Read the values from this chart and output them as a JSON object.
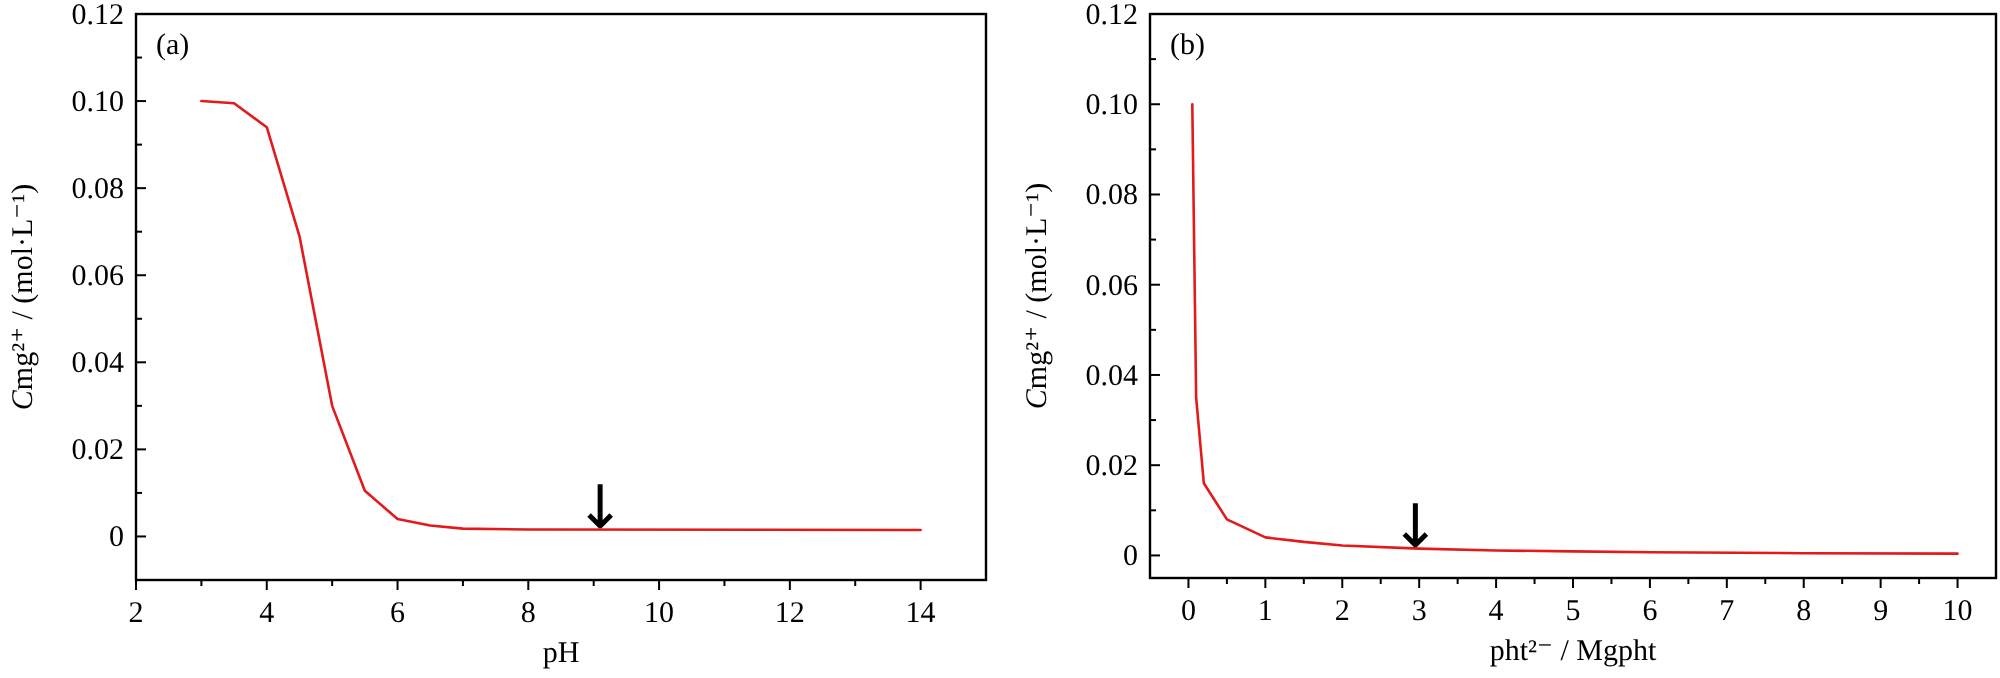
{
  "chart_data": [
    {
      "type": "line",
      "xlabel": "pH",
      "ylabel": "Cmg²⁺ / (mol·L⁻¹)",
      "xlim": [
        2,
        15
      ],
      "xticks": [
        2,
        {
          "value": 3,
          "label": null
        },
        4,
        {
          "value": 5,
          "label": null
        },
        6,
        {
          "value": 7,
          "label": null
        },
        8,
        {
          "value": 9,
          "label": null
        },
        10,
        {
          "value": 11,
          "label": null
        },
        12,
        {
          "value": 13,
          "label": null
        },
        14
      ],
      "ylim": [
        -0.01,
        0.12
      ],
      "yticks": [
        {
          "value": -0.01,
          "label": null
        },
        0,
        {
          "value": 0.01,
          "label": null
        },
        0.02,
        {
          "value": 0.03,
          "label": null
        },
        0.04,
        {
          "value": 0.05,
          "label": null
        },
        0.06,
        {
          "value": 0.07,
          "label": null
        },
        0.08,
        {
          "value": 0.09,
          "label": null
        },
        {
          "value": 0.1,
          "label": "0.10"
        },
        {
          "value": 0.11,
          "label": null
        },
        0.12
      ],
      "grid": false,
      "marker": "none",
      "line_style": "solid",
      "series": [
        {
          "color": "#e31a1c",
          "x": [
            3,
            3.5,
            4,
            4.5,
            5,
            5.5,
            6,
            6.5,
            7,
            8,
            14
          ],
          "values": [
            0.1,
            0.0995,
            0.094,
            0.069,
            0.03,
            0.0105,
            0.004,
            0.0025,
            0.0018,
            0.0016,
            0.0015
          ]
        }
      ],
      "annotations": [
        "(a)",
        {
          "text": "↓",
          "x": 9.1,
          "y": 0.0015
        }
      ]
    },
    {
      "type": "line",
      "xlabel": "pht²⁻ / Mgpht",
      "ylabel": "Cmg²⁺ / (mol·L⁻¹)",
      "xlim": [
        -0.5,
        10.5
      ],
      "xticks": [
        0,
        {
          "value": 0.5,
          "label": null
        },
        1,
        {
          "value": 1.5,
          "label": null
        },
        2,
        {
          "value": 2.5,
          "label": null
        },
        3,
        {
          "value": 3.5,
          "label": null
        },
        4,
        {
          "value": 4.5,
          "label": null
        },
        5,
        {
          "value": 5.5,
          "label": null
        },
        6,
        {
          "value": 6.5,
          "label": null
        },
        7,
        {
          "value": 7.5,
          "label": null
        },
        8,
        {
          "value": 8.5,
          "label": null
        },
        9,
        {
          "value": 9.5,
          "label": null
        },
        10
      ],
      "ylim": [
        -0.005,
        0.12
      ],
      "yticks": [
        0,
        {
          "value": 0.01,
          "label": null
        },
        0.02,
        {
          "value": 0.03,
          "label": null
        },
        0.04,
        {
          "value": 0.05,
          "label": null
        },
        0.06,
        {
          "value": 0.07,
          "label": null
        },
        0.08,
        {
          "value": 0.09,
          "label": null
        },
        {
          "value": 0.1,
          "label": "0.10"
        },
        {
          "value": 0.11,
          "label": null
        },
        0.12
      ],
      "grid": false,
      "marker": "none",
      "line_style": "solid",
      "series": [
        {
          "color": "#e31a1c",
          "x": [
            0.05,
            0.1,
            0.2,
            0.5,
            1,
            1.5,
            2,
            3,
            4,
            5,
            6,
            8,
            10
          ],
          "values": [
            0.1,
            0.035,
            0.016,
            0.008,
            0.004,
            0.003,
            0.0022,
            0.0015,
            0.0011,
            0.0009,
            0.0007,
            0.0005,
            0.0004
          ]
        }
      ],
      "annotations": [
        "(b)",
        {
          "text": "↓",
          "x": 2.95,
          "y": 0.0015
        }
      ]
    }
  ]
}
